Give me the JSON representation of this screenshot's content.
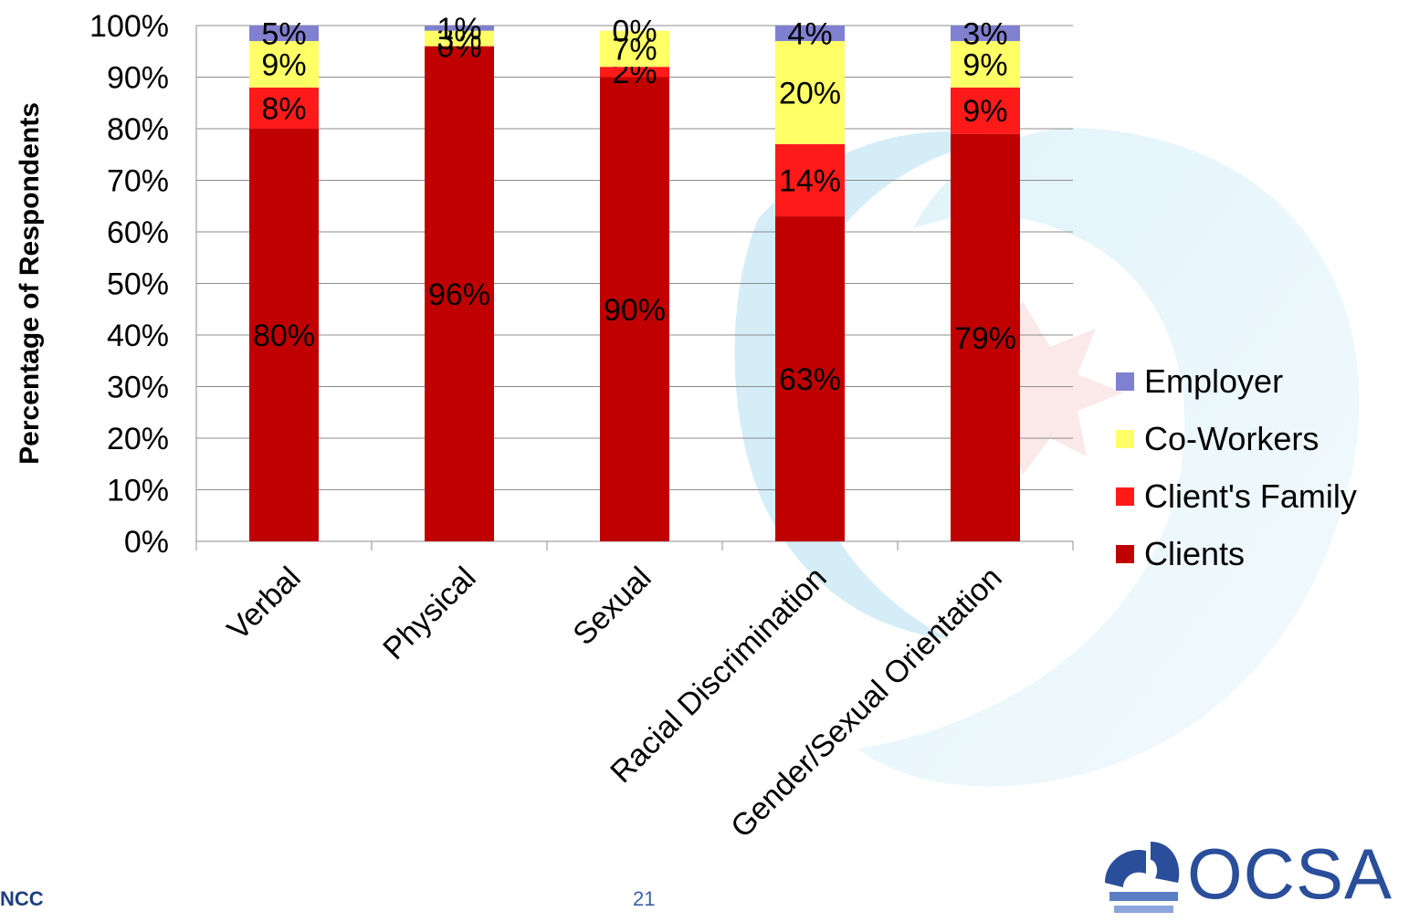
{
  "chart_data": {
    "type": "bar",
    "stacked": true,
    "categories": [
      "Verbal",
      "Physical",
      "Sexual",
      "Racial Discrimination",
      "Gender/Sexual Orientation"
    ],
    "series": [
      {
        "name": "Clients",
        "color": "#c00000",
        "values": [
          80,
          96,
          90,
          63,
          79
        ],
        "labels": [
          "80%",
          "96%",
          "90%",
          "63%",
          "79%"
        ]
      },
      {
        "name": "Client's Family",
        "color": "#ff1a1a",
        "values": [
          8,
          0,
          2,
          14,
          9
        ],
        "labels": [
          "8%",
          "0%",
          "2%",
          "14%",
          "9%"
        ]
      },
      {
        "name": "Co-Workers",
        "color": "#ffff66",
        "values": [
          9,
          3,
          7,
          20,
          9
        ],
        "labels": [
          "9%",
          "3%",
          "7%",
          "20%",
          "9%"
        ]
      },
      {
        "name": "Employer",
        "color": "#8080d0",
        "values": [
          5,
          1,
          0,
          4,
          3
        ],
        "labels": [
          "5%",
          "1%",
          "0%",
          "4%",
          "3%"
        ]
      }
    ],
    "ylabel": "Percentage of Respondents",
    "ylim": [
      0,
      100
    ],
    "yticks": [
      "0%",
      "10%",
      "20%",
      "30%",
      "40%",
      "50%",
      "60%",
      "70%",
      "80%",
      "90%",
      "100%"
    ],
    "grid": true,
    "legend_position": "right"
  },
  "footer": {
    "page_number": "21",
    "left_logo_text": "NCC",
    "right_logo_text": "OCSA"
  }
}
